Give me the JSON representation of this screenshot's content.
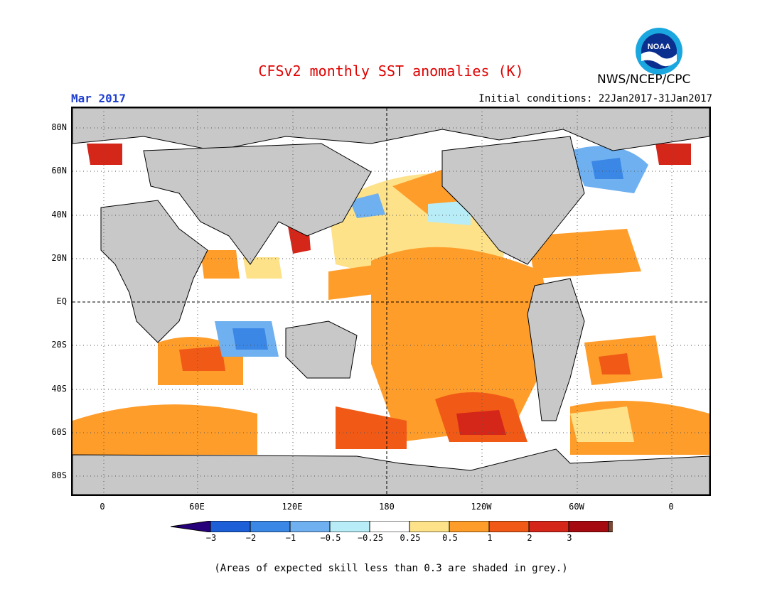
{
  "header": {
    "title": "CFSv2 monthly SST anomalies (K)",
    "organization": "NWS/NCEP/CPC",
    "valid_month": "Mar 2017",
    "initial_conditions": "Initial conditions: 22Jan2017-31Jan2017",
    "logo_text": "NOAA"
  },
  "map": {
    "y_ticks": [
      "80N",
      "60N",
      "40N",
      "20N",
      "EQ",
      "20S",
      "40S",
      "60S",
      "80S"
    ],
    "x_ticks": [
      "0",
      "60E",
      "120E",
      "180",
      "120W",
      "60W",
      "0"
    ],
    "land_color": "#c8c8c8",
    "regions": [
      {
        "name": "eastern-tropical-pacific-warm",
        "category": 1
      },
      {
        "name": "north-pacific-warm",
        "category": 0.5
      },
      {
        "name": "southern-ocean-warm",
        "category": 1
      },
      {
        "name": "south-pacific-hotspot",
        "category": 2
      },
      {
        "name": "north-atlantic-cold",
        "category": -1
      },
      {
        "name": "southeast-indian-cold",
        "category": -0.5
      }
    ]
  },
  "colorbar": {
    "labels": [
      "−3",
      "−2",
      "−1",
      "−0.5",
      "−0.25",
      "0.25",
      "0.5",
      "1",
      "2",
      "3"
    ],
    "colors": [
      "#26007a",
      "#1c5fd6",
      "#3a87e6",
      "#6fb0f0",
      "#b8ecf6",
      "#ffffff",
      "#fde28a",
      "#ff9d2a",
      "#f05a16",
      "#d5261a",
      "#a50a10",
      "#7a4a38"
    ]
  },
  "footnote": "(Areas of expected skill less than 0.3 are shaded in grey.)"
}
